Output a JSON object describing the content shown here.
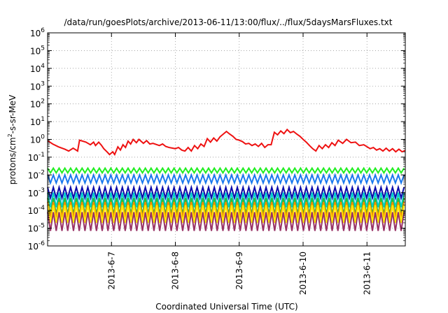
{
  "chart_data": {
    "type": "line",
    "title": "/data/run/goesPlots/archive/2013-06-11/13:00/flux/../flux/5daysMarsFluxes.txt",
    "xlabel": "Coordinated Universal Time (UTC)",
    "ylabel": {
      "base": "protons/cm",
      "sup": "2",
      "rest": "-s-sr-MeV"
    },
    "y_scale": "log",
    "ylim_exponent": [
      -6,
      6
    ],
    "y_tick_labels": [
      {
        "base": "10",
        "exp": "-6"
      },
      {
        "base": "10",
        "exp": "-5"
      },
      {
        "base": "10",
        "exp": "-4"
      },
      {
        "base": "10",
        "exp": "-3"
      },
      {
        "base": "10",
        "exp": "-2"
      },
      {
        "base": "10",
        "exp": "-1"
      },
      {
        "base": "10",
        "exp": "0"
      },
      {
        "base": "10",
        "exp": "1"
      },
      {
        "base": "10",
        "exp": "2"
      },
      {
        "base": "10",
        "exp": "3"
      },
      {
        "base": "10",
        "exp": "4"
      },
      {
        "base": "10",
        "exp": "5"
      },
      {
        "base": "10",
        "exp": "6"
      }
    ],
    "xlim_days": [
      6.0,
      11.6
    ],
    "x_ticks": [
      {
        "day": 6.0,
        "label": ""
      },
      {
        "day": 7.0,
        "label": "2013-6-7"
      },
      {
        "day": 8.0,
        "label": "2013-6-8"
      },
      {
        "day": 9.0,
        "label": "2013-6-9"
      },
      {
        "day": 10.0,
        "label": "2013-6-10"
      },
      {
        "day": 11.0,
        "label": "2013-6-11"
      }
    ],
    "grid": true,
    "legend": "none",
    "series": [
      {
        "color": "#ee1111",
        "pattern": "red",
        "points": [
          [
            6.0,
            0.85
          ],
          [
            6.08,
            0.55
          ],
          [
            6.17,
            0.38
          ],
          [
            6.27,
            0.28
          ],
          [
            6.33,
            0.22
          ],
          [
            6.4,
            0.32
          ],
          [
            6.47,
            0.22
          ],
          [
            6.5,
            0.9
          ],
          [
            6.6,
            0.7
          ],
          [
            6.67,
            0.5
          ],
          [
            6.72,
            0.7
          ],
          [
            6.75,
            0.45
          ],
          [
            6.8,
            0.7
          ],
          [
            6.84,
            0.48
          ],
          [
            6.88,
            0.3
          ],
          [
            6.93,
            0.2
          ],
          [
            6.97,
            0.14
          ],
          [
            7.02,
            0.2
          ],
          [
            7.05,
            0.14
          ],
          [
            7.1,
            0.38
          ],
          [
            7.14,
            0.25
          ],
          [
            7.18,
            0.5
          ],
          [
            7.22,
            0.35
          ],
          [
            7.26,
            0.8
          ],
          [
            7.3,
            0.55
          ],
          [
            7.34,
            1.0
          ],
          [
            7.39,
            0.65
          ],
          [
            7.43,
            1.0
          ],
          [
            7.5,
            0.6
          ],
          [
            7.55,
            0.85
          ],
          [
            7.6,
            0.55
          ],
          [
            7.65,
            0.6
          ],
          [
            7.75,
            0.45
          ],
          [
            7.8,
            0.55
          ],
          [
            7.85,
            0.4
          ],
          [
            7.9,
            0.35
          ],
          [
            8.0,
            0.3
          ],
          [
            8.05,
            0.35
          ],
          [
            8.1,
            0.25
          ],
          [
            8.15,
            0.22
          ],
          [
            8.2,
            0.35
          ],
          [
            8.25,
            0.22
          ],
          [
            8.3,
            0.45
          ],
          [
            8.35,
            0.3
          ],
          [
            8.4,
            0.55
          ],
          [
            8.45,
            0.4
          ],
          [
            8.5,
            1.1
          ],
          [
            8.55,
            0.7
          ],
          [
            8.6,
            1.2
          ],
          [
            8.65,
            0.8
          ],
          [
            8.7,
            1.4
          ],
          [
            8.8,
            2.8
          ],
          [
            8.85,
            2.0
          ],
          [
            8.9,
            1.5
          ],
          [
            8.95,
            1.0
          ],
          [
            9.0,
            0.9
          ],
          [
            9.05,
            0.75
          ],
          [
            9.1,
            0.55
          ],
          [
            9.15,
            0.6
          ],
          [
            9.2,
            0.45
          ],
          [
            9.25,
            0.55
          ],
          [
            9.3,
            0.4
          ],
          [
            9.35,
            0.6
          ],
          [
            9.4,
            0.35
          ],
          [
            9.45,
            0.5
          ],
          [
            9.5,
            0.5
          ],
          [
            9.55,
            2.5
          ],
          [
            9.6,
            1.8
          ],
          [
            9.65,
            3.0
          ],
          [
            9.7,
            2.1
          ],
          [
            9.75,
            3.6
          ],
          [
            9.8,
            2.4
          ],
          [
            9.85,
            2.8
          ],
          [
            9.9,
            2.0
          ],
          [
            9.95,
            1.5
          ],
          [
            10.0,
            1.0
          ],
          [
            10.05,
            0.7
          ],
          [
            10.1,
            0.45
          ],
          [
            10.15,
            0.3
          ],
          [
            10.2,
            0.22
          ],
          [
            10.25,
            0.45
          ],
          [
            10.3,
            0.3
          ],
          [
            10.35,
            0.5
          ],
          [
            10.4,
            0.35
          ],
          [
            10.45,
            0.65
          ],
          [
            10.5,
            0.45
          ],
          [
            10.55,
            0.9
          ],
          [
            10.62,
            0.6
          ],
          [
            10.68,
            1.0
          ],
          [
            10.75,
            0.65
          ],
          [
            10.82,
            0.7
          ],
          [
            10.88,
            0.45
          ],
          [
            10.95,
            0.5
          ],
          [
            11.05,
            0.3
          ],
          [
            11.1,
            0.35
          ],
          [
            11.15,
            0.25
          ],
          [
            11.2,
            0.3
          ],
          [
            11.25,
            0.22
          ],
          [
            11.3,
            0.32
          ],
          [
            11.35,
            0.22
          ],
          [
            11.4,
            0.3
          ],
          [
            11.45,
            0.2
          ],
          [
            11.5,
            0.28
          ],
          [
            11.55,
            0.2
          ],
          [
            11.6,
            0.24
          ]
        ]
      },
      {
        "color": "#22ee22",
        "pattern": "sawtooth",
        "start": 6.0,
        "step": 0.09,
        "hi": 0.024,
        "lo": 0.013
      },
      {
        "color": "#1a78ee",
        "pattern": "sawtooth",
        "start": 6.0,
        "step": 0.09,
        "hi": 0.01,
        "lo": 0.0035
      },
      {
        "color": "#0a0aaa",
        "pattern": "sawtooth",
        "start": 6.0,
        "step": 0.09,
        "hi": 0.002,
        "lo": 0.0005
      },
      {
        "color": "#00cccc",
        "pattern": "sawtooth",
        "start": 6.0,
        "step": 0.09,
        "hi": 0.001,
        "lo": 0.00015
      },
      {
        "color": "#33bb33",
        "pattern": "sawtooth",
        "start": 6.0,
        "step": 0.09,
        "hi": 0.0005,
        "lo": 6e-05
      },
      {
        "color": "#ff8800",
        "pattern": "sawtooth",
        "start": 6.0,
        "step": 0.09,
        "hi": 0.0003,
        "lo": 4e-05
      },
      {
        "color": "#ffee00",
        "pattern": "sawtooth",
        "start": 6.0,
        "step": 0.09,
        "hi": 0.0002,
        "lo": 2e-05
      },
      {
        "color": "#993366",
        "pattern": "sawtooth",
        "start": 6.0,
        "step": 0.09,
        "hi": 8e-05,
        "lo": 7e-06
      }
    ]
  }
}
